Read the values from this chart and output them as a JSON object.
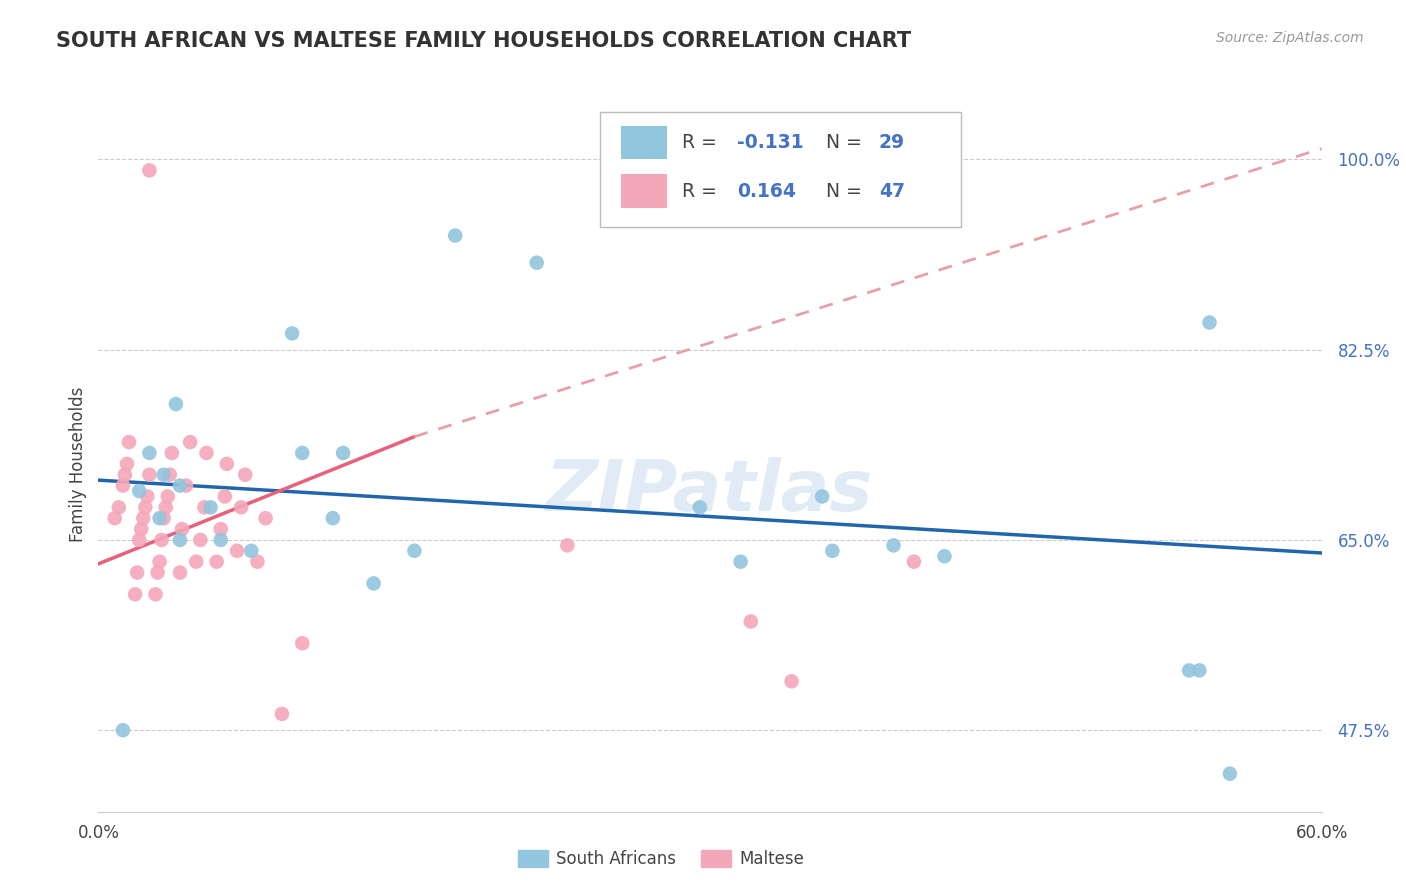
{
  "title": "SOUTH AFRICAN VS MALTESE FAMILY HOUSEHOLDS CORRELATION CHART",
  "source": "Source: ZipAtlas.com",
  "xlabel_sa": "South Africans",
  "xlabel_mt": "Maltese",
  "ylabel": "Family Households",
  "xlim": [
    0.0,
    0.6
  ],
  "ylim": [
    0.4,
    1.04
  ],
  "ytick_positions": [
    0.475,
    0.65,
    0.825,
    1.0
  ],
  "ytick_labels": [
    "47.5%",
    "65.0%",
    "82.5%",
    "100.0%"
  ],
  "legend_r_sa": "-0.131",
  "legend_n_sa": "29",
  "legend_r_mt": "0.164",
  "legend_n_mt": "47",
  "color_sa": "#92C5DE",
  "color_mt": "#F4A7B9",
  "color_trendline_sa": "#2166AC",
  "color_trendline_mt": "#E8607A",
  "color_trendline_mt_dash": "#E8A0A8",
  "watermark": "ZIPatlas",
  "trendline_sa_x0": 0.0,
  "trendline_sa_y0": 0.705,
  "trendline_sa_x1": 0.6,
  "trendline_sa_y1": 0.638,
  "trendline_mt_solid_x0": 0.0,
  "trendline_mt_solid_y0": 0.628,
  "trendline_mt_solid_x1": 0.155,
  "trendline_mt_solid_y1": 0.745,
  "trendline_mt_dash_x0": 0.155,
  "trendline_mt_dash_y0": 0.745,
  "trendline_mt_dash_x1": 0.6,
  "trendline_mt_dash_y1": 1.01,
  "sa_x": [
    0.012,
    0.02,
    0.025,
    0.03,
    0.032,
    0.038,
    0.04,
    0.04,
    0.055,
    0.06,
    0.075,
    0.095,
    0.1,
    0.115,
    0.12,
    0.135,
    0.155,
    0.175,
    0.215,
    0.295,
    0.315,
    0.355,
    0.36,
    0.39,
    0.415,
    0.535,
    0.54,
    0.545,
    0.555
  ],
  "sa_y": [
    0.475,
    0.695,
    0.73,
    0.67,
    0.71,
    0.775,
    0.7,
    0.65,
    0.68,
    0.65,
    0.64,
    0.84,
    0.73,
    0.67,
    0.73,
    0.61,
    0.64,
    0.93,
    0.905,
    0.68,
    0.63,
    0.69,
    0.64,
    0.645,
    0.635,
    0.53,
    0.53,
    0.85,
    0.435
  ],
  "mt_x": [
    0.008,
    0.01,
    0.012,
    0.013,
    0.014,
    0.015,
    0.018,
    0.019,
    0.02,
    0.021,
    0.022,
    0.023,
    0.024,
    0.025,
    0.025,
    0.028,
    0.029,
    0.03,
    0.031,
    0.032,
    0.033,
    0.034,
    0.035,
    0.036,
    0.04,
    0.041,
    0.043,
    0.045,
    0.048,
    0.05,
    0.052,
    0.053,
    0.058,
    0.06,
    0.062,
    0.063,
    0.068,
    0.07,
    0.072,
    0.078,
    0.082,
    0.09,
    0.1,
    0.23,
    0.32,
    0.34,
    0.4
  ],
  "mt_y": [
    0.67,
    0.68,
    0.7,
    0.71,
    0.72,
    0.74,
    0.6,
    0.62,
    0.65,
    0.66,
    0.67,
    0.68,
    0.69,
    0.71,
    0.99,
    0.6,
    0.62,
    0.63,
    0.65,
    0.67,
    0.68,
    0.69,
    0.71,
    0.73,
    0.62,
    0.66,
    0.7,
    0.74,
    0.63,
    0.65,
    0.68,
    0.73,
    0.63,
    0.66,
    0.69,
    0.72,
    0.64,
    0.68,
    0.71,
    0.63,
    0.67,
    0.49,
    0.555,
    0.645,
    0.575,
    0.52,
    0.63
  ]
}
